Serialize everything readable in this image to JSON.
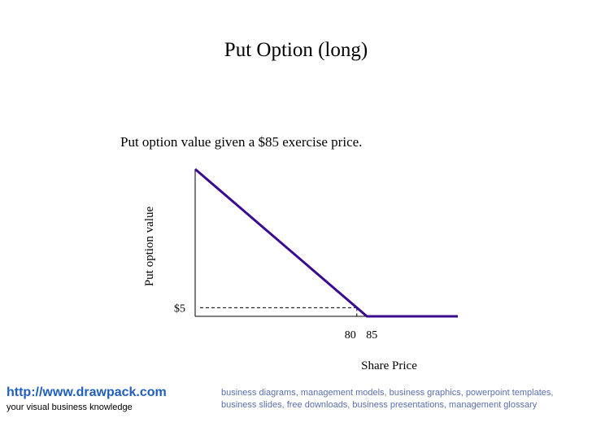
{
  "title": "Put Option (long)",
  "subtitle": "Put option value given a $85 exercise price.",
  "chart_data": {
    "type": "line",
    "title": "Put Option (long)",
    "subtitle": "Put option value given a $85 exercise price.",
    "xlabel": "Share Price",
    "ylabel": "Put option value",
    "xlim": [
      0,
      130
    ],
    "ylim": [
      0,
      85
    ],
    "series": [
      {
        "x": [
          0,
          85,
          130
        ],
        "values": [
          85,
          0,
          0
        ],
        "color": "#3a0a8f"
      }
    ],
    "x_ticks": [
      {
        "value": 80,
        "label": "80"
      },
      {
        "value": 85,
        "label": "85"
      }
    ],
    "y_ticks": [
      {
        "value": 5,
        "label": "$5"
      }
    ],
    "reference": {
      "x": 80,
      "y": 5,
      "style": "dashed"
    },
    "grid": false
  },
  "footer": {
    "url": "http://www.drawpack.com",
    "tagline": "your visual business knowledge",
    "keywords": "business diagrams, management models, business graphics, powerpoint templates, business slides, free downloads, business presentations, management glossary"
  },
  "colors": {
    "series": "#3a0a8f",
    "link": "#1f5fbf",
    "keywords": "#5a6fb0"
  }
}
